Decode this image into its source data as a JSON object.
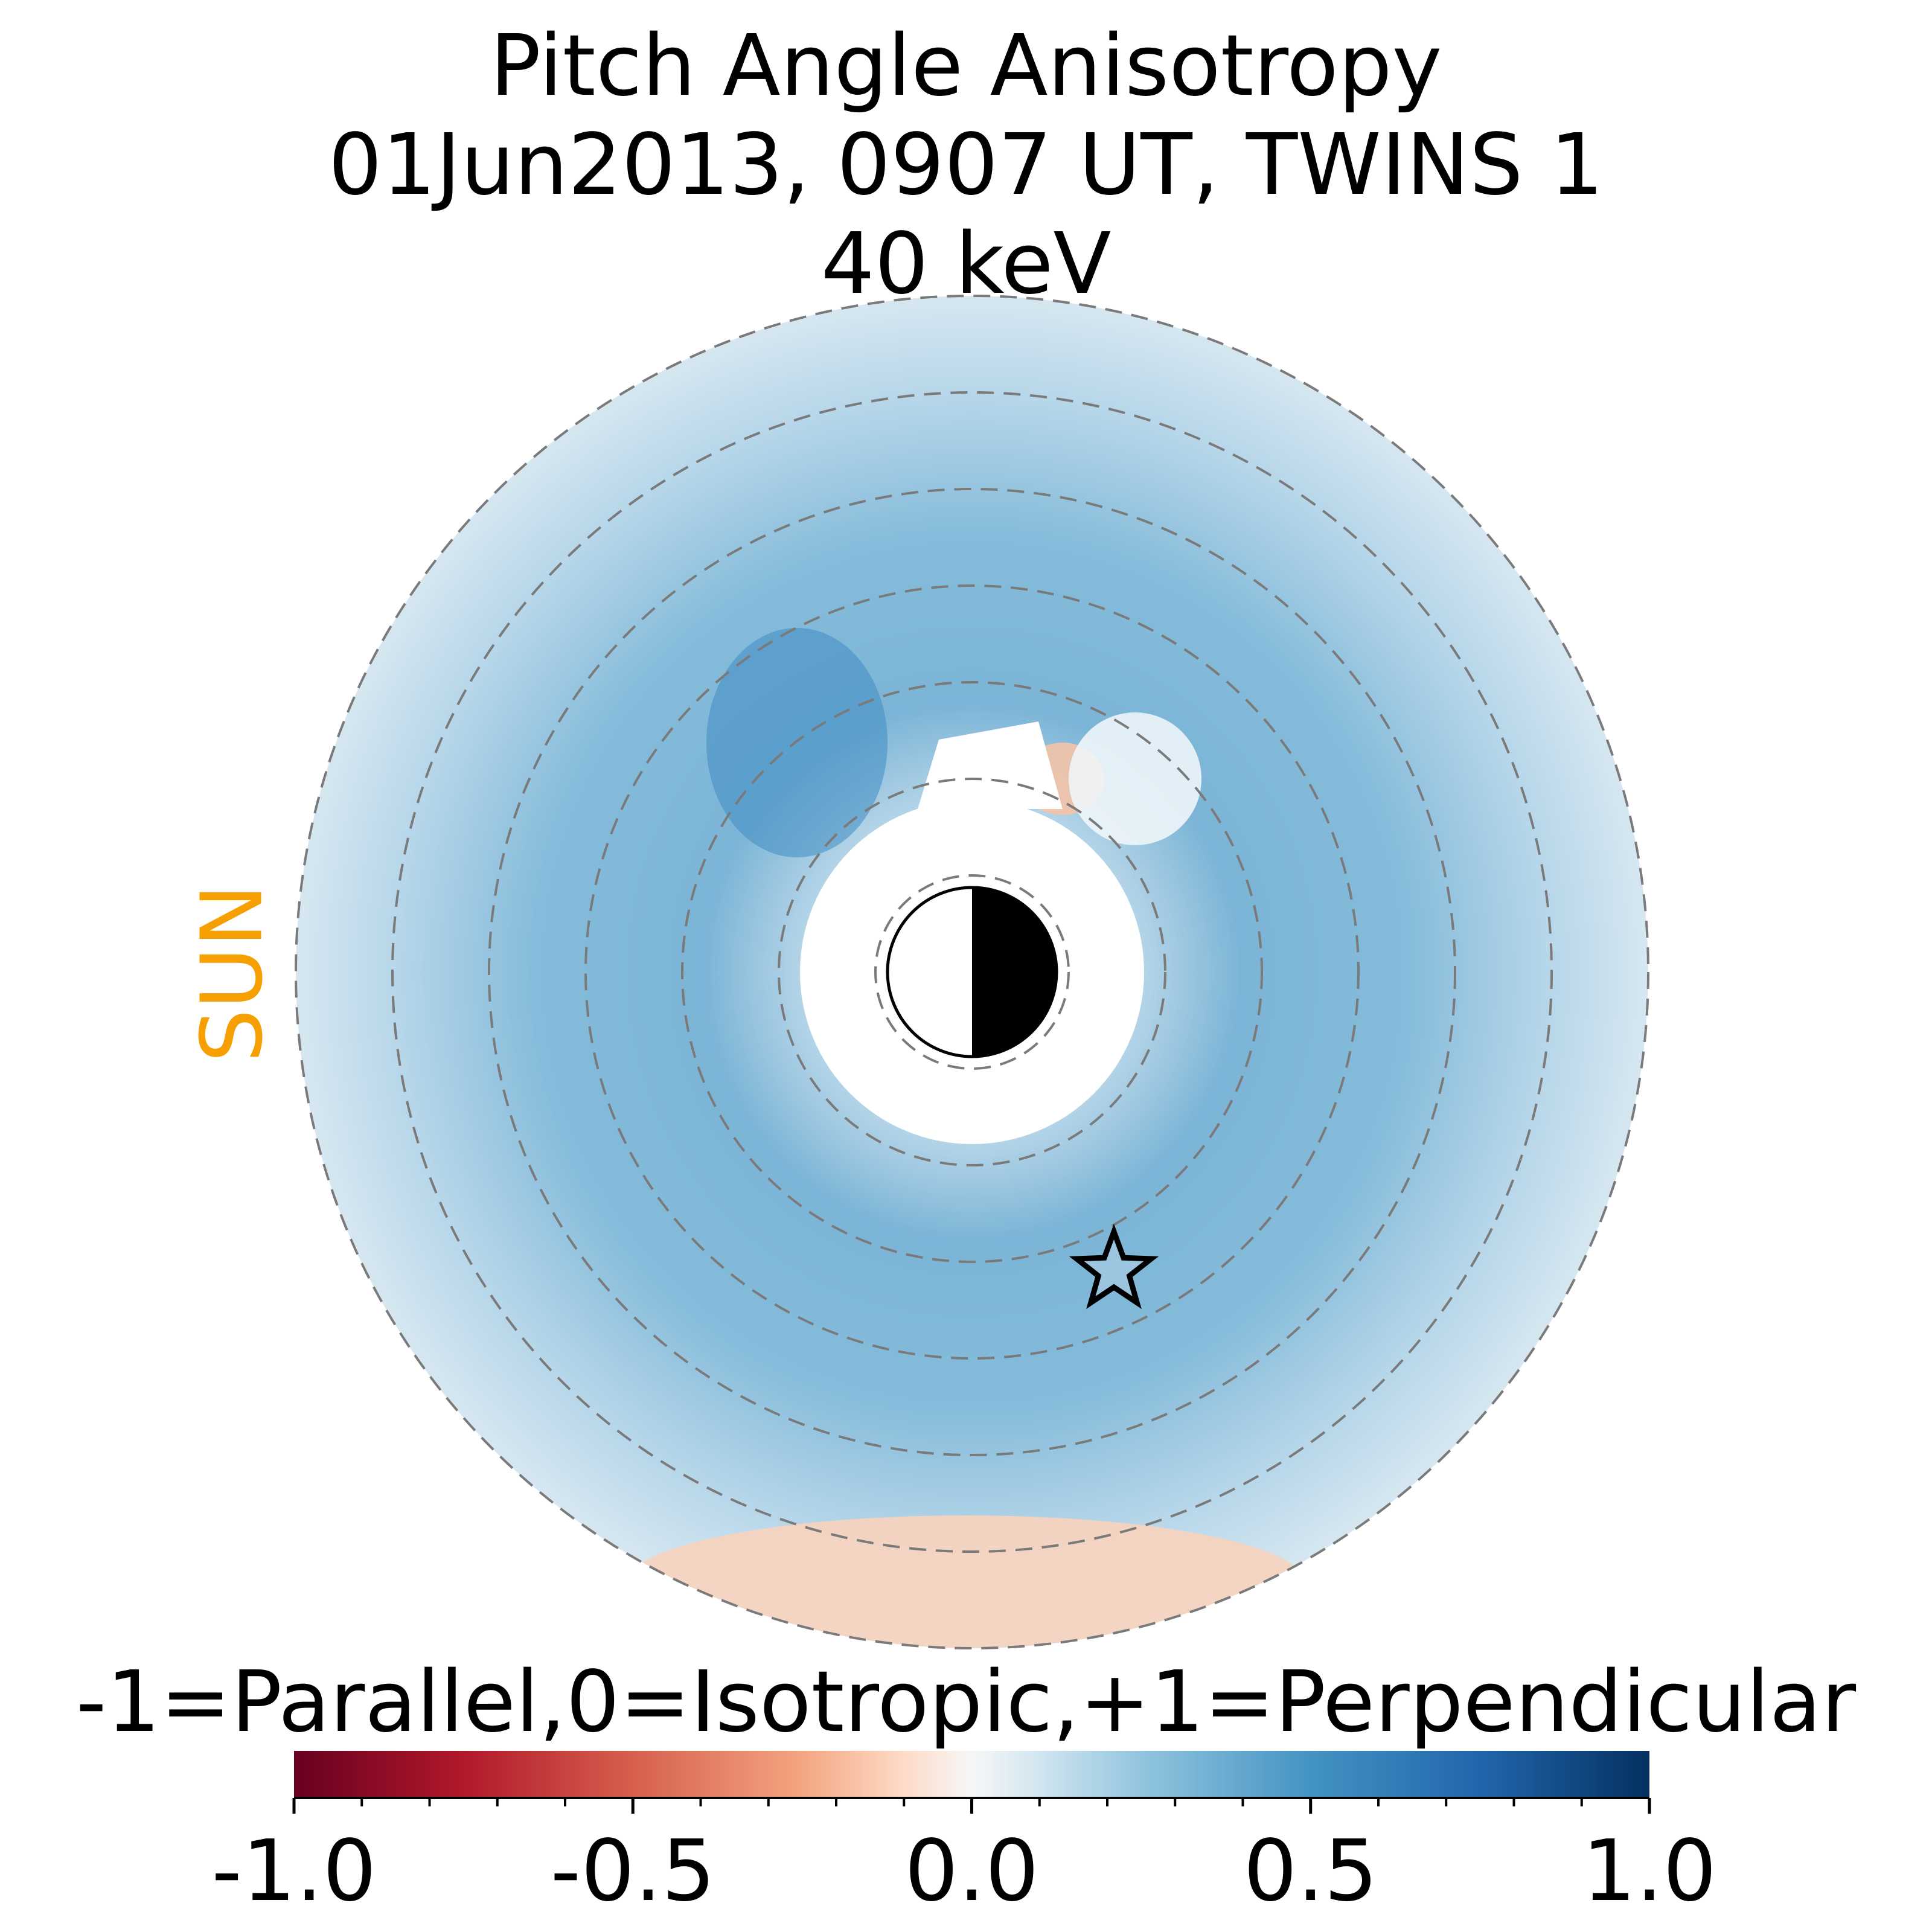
{
  "title": {
    "line1": "Pitch Angle Anisotropy",
    "line2": "01Jun2013, 0907 UT,  TWINS 1",
    "line3": "40 keV"
  },
  "sun_label": "SUN",
  "colors": {
    "sun": "#f5a000",
    "grid": "#7a7a7a",
    "colormap": "RdBu"
  },
  "chart_data": {
    "type": "heatmap",
    "projection": "polar",
    "values_description": "",
    "dashed_rings": 7,
    "marker": "star",
    "colorbar": {
      "label": "-1=Parallel,0=Isotropic,+1=Perpendicular",
      "vmin": -1.0,
      "vmax": 1.0,
      "ticks": [
        -1.0,
        -0.5,
        0.0,
        0.5,
        1.0
      ],
      "tick_labels": [
        "-1.0",
        "-0.5",
        "0.0",
        "0.5",
        "1.0"
      ],
      "minor_tick_step": 0.1,
      "colormap_stops": [
        {
          "v": -1.0,
          "c": "#67001f"
        },
        {
          "v": -0.75,
          "c": "#b2182b"
        },
        {
          "v": -0.5,
          "c": "#d6604d"
        },
        {
          "v": -0.25,
          "c": "#f4a582"
        },
        {
          "v": -0.1,
          "c": "#fddbc7"
        },
        {
          "v": 0.0,
          "c": "#f7f7f7"
        },
        {
          "v": 0.1,
          "c": "#d1e5f0"
        },
        {
          "v": 0.25,
          "c": "#92c5de"
        },
        {
          "v": 0.5,
          "c": "#4393c3"
        },
        {
          "v": 0.75,
          "c": "#2166ac"
        },
        {
          "v": 1.0,
          "c": "#053061"
        }
      ]
    }
  }
}
